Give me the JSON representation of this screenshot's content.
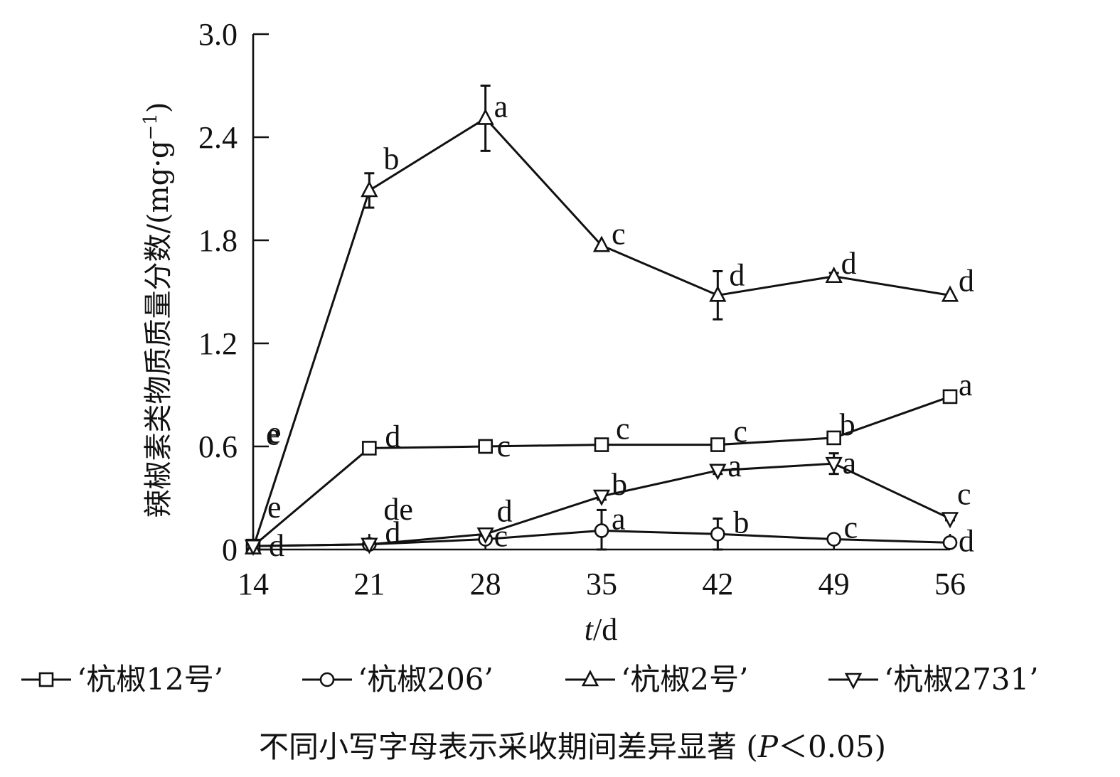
{
  "chart_data": {
    "type": "line",
    "xlabel_var": "t",
    "xlabel_unit": "/d",
    "ylabel": "辣椒素类物质质量分数/(mg·g",
    "ylabel_sup": "−1",
    "ylabel_close": ")",
    "x": [
      14,
      21,
      28,
      35,
      42,
      49,
      56
    ],
    "xlim": [
      14,
      56
    ],
    "ylim": [
      0,
      3.0
    ],
    "yticks": [
      0,
      0.6,
      1.2,
      1.8,
      2.4,
      3.0
    ],
    "ytick_labels": [
      "0",
      "0.6",
      "1.2",
      "1.8",
      "2.4",
      "3.0"
    ],
    "xtick_labels": [
      "14",
      "21",
      "28",
      "35",
      "42",
      "49",
      "56"
    ],
    "grid": false,
    "legend_position": "bottom",
    "series": [
      {
        "name": "‘杭椒12号’",
        "marker": "square",
        "values": [
          0.02,
          0.59,
          0.6,
          0.61,
          0.61,
          0.65,
          0.89
        ],
        "errors": [
          0,
          0.02,
          0,
          0,
          0.01,
          0.01,
          0
        ],
        "letters": [
          "e",
          "d",
          "c",
          "c",
          "c",
          "b",
          "a"
        ]
      },
      {
        "name": "‘杭椒206’",
        "marker": "circle",
        "values": [
          0.02,
          0.03,
          0.06,
          0.11,
          0.09,
          0.06,
          0.04
        ],
        "errors": [
          0,
          0,
          0.01,
          0.12,
          0.09,
          0,
          0
        ],
        "letters": [
          "d",
          "d",
          "c",
          "a",
          "b",
          "c",
          "d"
        ]
      },
      {
        "name": "‘杭椒2号’",
        "marker": "triangle-up",
        "values": [
          0.01,
          2.09,
          2.51,
          1.77,
          1.48,
          1.59,
          1.48
        ],
        "errors": [
          0,
          0.1,
          0.19,
          0,
          0.14,
          0.02,
          0
        ],
        "letters": [
          "e",
          "b",
          "a",
          "c",
          "d",
          "d",
          "d"
        ]
      },
      {
        "name": "‘杭椒2731’",
        "marker": "triangle-down",
        "values": [
          0.02,
          0.03,
          0.09,
          0.31,
          0.46,
          0.5,
          0.18
        ],
        "errors": [
          0,
          0,
          0.01,
          0.02,
          0.02,
          0.06,
          0.01
        ],
        "letters": [
          "e",
          "de",
          "d",
          "b",
          "a",
          "a",
          "c"
        ]
      }
    ],
    "note_main": "不同小写字母表示采收期间差异显著 (",
    "note_p": "P",
    "note_tail": "＜0.05)"
  }
}
